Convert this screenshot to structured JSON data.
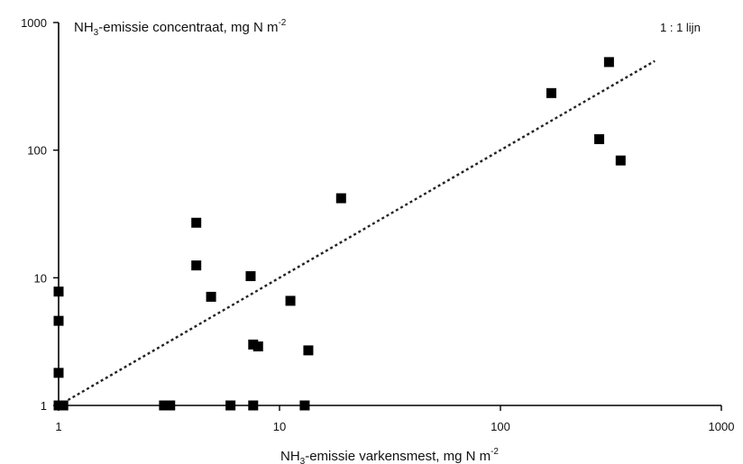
{
  "chart_data": {
    "type": "scatter",
    "title": "",
    "xlabel": {
      "pre": "NH",
      "sub": "3",
      "post": "-emissie varkensmest, mg N m",
      "sup": "-2"
    },
    "ylabel": {
      "pre": "NH",
      "sub": "3",
      "post": "-emissie concentraat, mg N m",
      "sup": "-2"
    },
    "xscale": "log",
    "yscale": "log",
    "xlim": [
      1,
      1000
    ],
    "ylim": [
      1,
      1000
    ],
    "xticks": [
      1,
      10,
      100,
      1000
    ],
    "yticks": [
      1,
      10,
      100,
      1000
    ],
    "xtick_labels": [
      "1",
      "10",
      "100",
      "1000"
    ],
    "ytick_labels": [
      "1",
      "10",
      "100",
      "1000"
    ],
    "grid": false,
    "legend": "none",
    "reference_line": {
      "label": "1 : 1 lijn",
      "x": [
        1,
        500
      ],
      "y": [
        1,
        500
      ],
      "style": "dotted",
      "color": "#222222"
    },
    "marker": {
      "shape": "square",
      "color": "#000000"
    },
    "points": [
      {
        "x": 1.0,
        "y": 7.8
      },
      {
        "x": 1.0,
        "y": 4.6
      },
      {
        "x": 1.0,
        "y": 1.8
      },
      {
        "x": 1.0,
        "y": 1.0
      },
      {
        "x": 1.05,
        "y": 1.0
      },
      {
        "x": 3.0,
        "y": 1.0
      },
      {
        "x": 3.2,
        "y": 1.0
      },
      {
        "x": 4.2,
        "y": 27.0
      },
      {
        "x": 4.2,
        "y": 12.5
      },
      {
        "x": 4.9,
        "y": 7.1
      },
      {
        "x": 6.0,
        "y": 1.0
      },
      {
        "x": 7.4,
        "y": 10.3
      },
      {
        "x": 7.6,
        "y": 3.0
      },
      {
        "x": 7.6,
        "y": 1.0
      },
      {
        "x": 8.0,
        "y": 2.9
      },
      {
        "x": 11.2,
        "y": 6.6
      },
      {
        "x": 13.0,
        "y": 1.0
      },
      {
        "x": 13.5,
        "y": 2.7
      },
      {
        "x": 19.0,
        "y": 42.0
      },
      {
        "x": 170.0,
        "y": 280.0
      },
      {
        "x": 280.0,
        "y": 122.0
      },
      {
        "x": 310.0,
        "y": 490.0
      },
      {
        "x": 350.0,
        "y": 83.0
      }
    ]
  }
}
